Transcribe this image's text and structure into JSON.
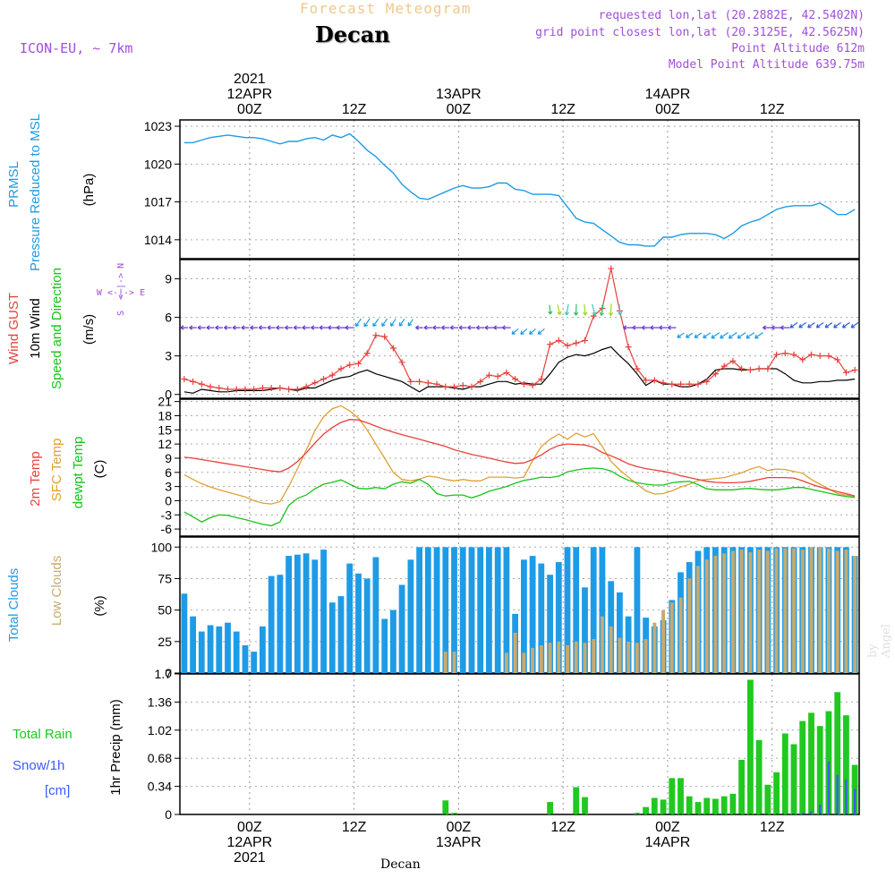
{
  "header": {
    "subtitle": "Forecast Meteogram",
    "location": "Decan",
    "model": "ICON-EU, ~ 7km",
    "requested": "requested lon,lat (20.2882E, 42.5402N)",
    "gridpoint": "grid point closest lon,lat (20.3125E, 42.5625N)",
    "point_alt": "Point Altitude 612m",
    "model_alt": "Model Point Altitude 639.75m",
    "footer": "Decan",
    "signature": "by Angel"
  },
  "colors": {
    "pressure": "#1e9be6",
    "gust": "#e8413c",
    "wind": "#000000",
    "temp2m": "#e8413c",
    "sfc": "#e0a030",
    "dew": "#19c419",
    "clouds": "#1e9be6",
    "lowclouds": "#c8aa6e",
    "rain": "#20c820",
    "snow": "#3c5aff",
    "title": "#f0c88c",
    "meta": "#a050d8"
  },
  "time_axis": {
    "top": [
      {
        "i": 8,
        "lines": [
          "2021",
          "12APR",
          "00Z"
        ]
      },
      {
        "i": 20,
        "lines": [
          "12Z"
        ]
      },
      {
        "i": 32,
        "lines": [
          "13APR",
          "00Z"
        ]
      },
      {
        "i": 44,
        "lines": [
          "12Z"
        ]
      },
      {
        "i": 56,
        "lines": [
          "14APR",
          "00Z"
        ]
      },
      {
        "i": 68,
        "lines": [
          "12Z"
        ]
      }
    ],
    "bottom": [
      {
        "i": 8,
        "lines": [
          "00Z",
          "12APR",
          "2021"
        ]
      },
      {
        "i": 20,
        "lines": [
          "12Z"
        ]
      },
      {
        "i": 32,
        "lines": [
          "00Z",
          "13APR"
        ]
      },
      {
        "i": 44,
        "lines": [
          "12Z"
        ]
      },
      {
        "i": 56,
        "lines": [
          "00Z",
          "14APR"
        ]
      },
      {
        "i": 68,
        "lines": [
          "12Z"
        ]
      }
    ]
  },
  "panels": [
    {
      "id": "pressure",
      "labels": [
        {
          "text": "PRMSL",
          "color": "#1e9be6"
        },
        {
          "text": "Pressure Reduced to MSL",
          "color": "#1e9be6"
        },
        {
          "text": "(hPa)",
          "color": "#000000"
        }
      ],
      "ylim": [
        1012.5,
        1023.5
      ],
      "ticks": [
        "1023",
        "1020",
        "1017",
        "1014"
      ]
    },
    {
      "id": "wind",
      "labels": [
        {
          "text": "Wind GUST",
          "color": "#e8413c"
        },
        {
          "text": "10m Wind",
          "color": "#000000"
        },
        {
          "text": "Speed and Direction",
          "color": "#19c419"
        },
        {
          "text": "(m/s)",
          "color": "#000000"
        }
      ],
      "ylim": [
        -0.3,
        10.5
      ],
      "ticks": [
        "9",
        "6",
        "3",
        "0"
      ],
      "compass": [
        "N",
        "W <-|-> E",
        "S"
      ]
    },
    {
      "id": "temp",
      "labels": [
        {
          "text": "2m Temp",
          "color": "#e8413c"
        },
        {
          "text": "SFC Temp",
          "color": "#e0a030"
        },
        {
          "text": "dewpt Temp",
          "color": "#19c419"
        },
        {
          "text": "(C)",
          "color": "#000000"
        }
      ],
      "ylim": [
        -7.5,
        21.5
      ],
      "ticks": [
        "21",
        "18",
        "15",
        "12",
        "9",
        "6",
        "3",
        "0",
        "-3",
        "-6"
      ]
    },
    {
      "id": "clouds",
      "labels": [
        {
          "text": "Total Clouds",
          "color": "#1e9be6"
        },
        {
          "text": "Low Clouds",
          "color": "#c8aa6e"
        },
        {
          "text": "(%)",
          "color": "#000000"
        }
      ],
      "ylim": [
        0,
        108
      ],
      "ticks": [
        "100",
        "75",
        "50",
        "25",
        "0"
      ]
    },
    {
      "id": "precip",
      "labels": [
        {
          "text": "Total  Rain",
          "color": "#20c820"
        },
        {
          "text": "Snow/1h",
          "color": "#3c5aff"
        },
        {
          "text": "[cm]",
          "color": "#3c5aff"
        },
        {
          "text": "1hr Precip (mm)",
          "color": "#000000"
        }
      ],
      "ylim": [
        0,
        1.7
      ],
      "ticks": [
        "1.7",
        "1.36",
        "1.02",
        "0.68",
        "0.34",
        "0"
      ]
    }
  ],
  "chart_data": {
    "type": "meteogram",
    "title": "Decan",
    "x": "hourly steps, index 0 = 11 Apr 16Z, index 8 = 12 Apr 00Z (step 1h), 78 steps",
    "series": [
      {
        "name": "pressure_msl_hPa",
        "values": [
          1021.7,
          1021.7,
          1021.9,
          1022.1,
          1022.2,
          1022.3,
          1022.2,
          1022.1,
          1022.1,
          1022.0,
          1021.8,
          1021.6,
          1021.8,
          1021.8,
          1022.0,
          1022.1,
          1021.9,
          1022.3,
          1022.1,
          1022.4,
          1021.8,
          1021.1,
          1020.6,
          1019.9,
          1019.3,
          1018.4,
          1017.8,
          1017.3,
          1017.2,
          1017.5,
          1017.8,
          1018.1,
          1018.3,
          1018.1,
          1018.1,
          1018.2,
          1018.5,
          1018.5,
          1018.0,
          1017.9,
          1017.6,
          1017.6,
          1017.6,
          1017.5,
          1016.6,
          1015.7,
          1015.4,
          1015.3,
          1014.8,
          1014.3,
          1013.8,
          1013.6,
          1013.6,
          1013.5,
          1013.5,
          1014.2,
          1014.2,
          1014.4,
          1014.5,
          1014.5,
          1014.5,
          1014.4,
          1014.1,
          1014.5,
          1015.1,
          1015.4,
          1015.6,
          1016.0,
          1016.4,
          1016.6,
          1016.7,
          1016.7,
          1016.7,
          1016.9,
          1016.5,
          1016.0,
          1016.0,
          1016.4
        ]
      },
      {
        "name": "wind_gust_ms",
        "values": [
          1.2,
          1.0,
          0.8,
          0.6,
          0.5,
          0.4,
          0.4,
          0.4,
          0.4,
          0.5,
          0.5,
          0.5,
          0.4,
          0.4,
          0.6,
          0.9,
          1.2,
          1.5,
          2.0,
          2.3,
          2.4,
          3.2,
          4.6,
          4.5,
          3.6,
          2.5,
          1.0,
          1.0,
          0.9,
          0.8,
          0.6,
          0.6,
          0.7,
          0.6,
          1.0,
          1.5,
          1.4,
          1.7,
          1.2,
          0.8,
          0.7,
          1.2,
          3.9,
          4.2,
          3.8,
          4.0,
          4.2,
          6.1,
          6.7,
          9.8,
          6.5,
          3.7,
          2.0,
          1.1,
          1.1,
          0.9,
          0.8,
          0.8,
          0.8,
          0.8,
          1.0,
          1.6,
          2.2,
          2.6,
          2.0,
          1.9,
          2.0,
          2.0,
          3.1,
          3.2,
          3.1,
          2.7,
          3.1,
          3.0,
          3.0,
          2.7,
          1.7,
          1.9
        ]
      },
      {
        "name": "wind_10m_ms",
        "values": [
          0.2,
          0.1,
          0.4,
          0.3,
          0.2,
          0.2,
          0.3,
          0.3,
          0.3,
          0.3,
          0.4,
          0.5,
          0.4,
          0.3,
          0.5,
          0.5,
          0.8,
          1.1,
          1.3,
          1.4,
          1.7,
          1.9,
          1.6,
          1.4,
          1.2,
          1.0,
          0.6,
          0.2,
          0.6,
          0.6,
          0.6,
          0.5,
          0.4,
          0.6,
          0.6,
          0.8,
          1.0,
          1.0,
          0.8,
          0.9,
          0.8,
          0.8,
          1.6,
          2.5,
          2.9,
          3.1,
          3.0,
          3.2,
          3.5,
          3.7,
          3.0,
          2.4,
          1.6,
          0.7,
          1.1,
          0.8,
          0.8,
          0.6,
          0.6,
          0.8,
          1.2,
          1.9,
          2.0,
          2.0,
          1.9,
          1.9,
          2.0,
          2.0,
          2.0,
          1.6,
          1.1,
          0.9,
          0.9,
          1.0,
          1.0,
          1.1,
          1.1,
          1.2
        ]
      },
      {
        "name": "temp_2m_C",
        "values": [
          9.2,
          9.0,
          8.7,
          8.4,
          8.1,
          7.8,
          7.5,
          7.2,
          6.9,
          6.6,
          6.3,
          6.1,
          6.9,
          8.3,
          10.1,
          12.2,
          14.1,
          15.5,
          16.6,
          17.2,
          17.1,
          16.5,
          15.8,
          15.1,
          14.5,
          14.0,
          13.5,
          13.0,
          12.5,
          12.0,
          11.5,
          10.8,
          10.3,
          9.8,
          9.4,
          9.0,
          8.6,
          8.2,
          7.9,
          8.0,
          8.7,
          9.7,
          10.9,
          11.7,
          12.0,
          11.9,
          11.8,
          11.3,
          10.2,
          9.5,
          8.7,
          7.8,
          7.2,
          6.8,
          6.5,
          6.2,
          5.8,
          5.3,
          4.9,
          4.5,
          4.1,
          3.9,
          3.8,
          3.8,
          3.9,
          4.1,
          4.5,
          4.9,
          4.9,
          4.9,
          4.8,
          4.2,
          3.5,
          2.9,
          2.4,
          1.9,
          1.5,
          1.0
        ]
      },
      {
        "name": "temp_sfc_C",
        "values": [
          5.5,
          4.5,
          3.6,
          2.9,
          2.3,
          1.8,
          1.3,
          0.8,
          0.0,
          -0.5,
          -0.7,
          -0.2,
          3.0,
          6.8,
          10.7,
          14.8,
          17.8,
          19.5,
          20.1,
          19.0,
          17.5,
          15.0,
          12.0,
          9.0,
          6.0,
          4.5,
          4.2,
          4.6,
          5.2,
          5.0,
          4.5,
          4.2,
          4.5,
          4.2,
          4.2,
          5.0,
          5.0,
          5.0,
          4.8,
          5.0,
          8.5,
          11.5,
          13.0,
          14.1,
          13.0,
          14.3,
          13.5,
          14.2,
          11.5,
          8.3,
          6.5,
          5.0,
          3.5,
          2.1,
          1.4,
          1.5,
          2.1,
          2.9,
          3.5,
          4.3,
          4.5,
          4.7,
          4.9,
          5.4,
          5.9,
          6.7,
          7.2,
          6.4,
          6.7,
          6.6,
          6.2,
          5.8,
          4.5,
          3.5,
          2.5,
          1.5,
          1.2,
          1.0
        ]
      },
      {
        "name": "dewpoint_C",
        "values": [
          -2.4,
          -3.4,
          -4.5,
          -3.6,
          -3.0,
          -3.1,
          -3.6,
          -4.0,
          -4.5,
          -5.0,
          -5.3,
          -4.5,
          -1.0,
          0.5,
          1.2,
          2.5,
          3.5,
          3.9,
          4.4,
          3.5,
          2.6,
          2.5,
          2.8,
          2.5,
          3.5,
          4.0,
          3.7,
          4.5,
          3.5,
          1.5,
          1.0,
          1.2,
          1.2,
          0.6,
          1.2,
          2.0,
          2.5,
          3.0,
          3.7,
          4.3,
          4.6,
          5.0,
          4.9,
          5.2,
          6.1,
          6.5,
          6.8,
          6.9,
          6.8,
          6.3,
          5.2,
          4.3,
          3.8,
          3.5,
          3.3,
          3.3,
          3.8,
          4.0,
          4.1,
          3.4,
          2.5,
          2.3,
          2.3,
          2.3,
          2.5,
          2.6,
          2.4,
          2.3,
          2.3,
          2.5,
          2.8,
          2.8,
          2.4,
          2.0,
          1.6,
          1.2,
          0.9,
          0.7
        ]
      },
      {
        "name": "total_clouds_pct",
        "values": [
          63,
          45,
          33,
          38,
          37,
          40,
          33,
          22,
          17,
          37,
          77,
          78,
          93,
          94,
          95,
          90,
          98,
          56,
          61,
          87,
          79,
          75,
          92,
          43,
          50,
          70,
          90,
          100,
          100,
          100,
          100,
          100,
          100,
          100,
          100,
          100,
          100,
          100,
          47,
          90,
          93,
          87,
          78,
          88,
          100,
          100,
          68,
          100,
          100,
          73,
          64,
          45,
          100,
          44,
          37,
          42,
          58,
          80,
          88,
          97,
          100,
          100,
          100,
          100,
          100,
          100,
          100,
          100,
          100,
          100,
          100,
          100,
          100,
          100,
          100,
          100,
          100,
          93
        ]
      },
      {
        "name": "low_clouds_pct",
        "values": [
          0,
          0,
          0,
          0,
          0,
          0,
          0,
          0,
          0,
          0,
          0,
          0,
          0,
          0,
          0,
          0,
          0,
          0,
          0,
          0,
          0,
          0,
          0,
          0,
          0,
          0,
          0,
          0,
          0,
          0,
          17,
          17,
          0,
          0,
          0,
          0,
          0,
          16,
          32,
          16,
          20,
          22,
          24,
          25,
          22,
          25,
          24,
          27,
          45,
          37,
          28,
          25,
          24,
          27,
          40,
          50,
          56,
          60,
          75,
          85,
          90,
          93,
          95,
          97,
          98,
          96,
          98,
          97,
          99,
          99,
          99,
          98,
          100,
          100,
          99,
          97,
          98,
          93
        ]
      },
      {
        "name": "rain_1h_mm",
        "values": [
          0,
          0,
          0,
          0,
          0,
          0,
          0,
          0,
          0,
          0,
          0,
          0,
          0,
          0,
          0,
          0,
          0,
          0,
          0,
          0,
          0,
          0,
          0,
          0,
          0,
          0,
          0,
          0,
          0,
          0,
          0.17,
          0.02,
          0,
          0,
          0,
          0,
          0,
          0,
          0,
          0,
          0,
          0,
          0.15,
          0,
          0,
          0.33,
          0.21,
          0,
          0,
          0,
          0,
          0,
          0.02,
          0.09,
          0.2,
          0.18,
          0.44,
          0.44,
          0.22,
          0.15,
          0.2,
          0.19,
          0.22,
          0.25,
          0.66,
          1.63,
          0.9,
          0.36,
          0.51,
          0.98,
          0.85,
          1.13,
          1.23,
          1.07,
          1.25,
          1.48,
          1.2,
          0.6
        ]
      },
      {
        "name": "snow_1h_cm",
        "values": [
          0,
          0,
          0,
          0,
          0,
          0,
          0,
          0,
          0,
          0,
          0,
          0,
          0,
          0,
          0,
          0,
          0,
          0,
          0,
          0,
          0,
          0,
          0,
          0,
          0,
          0,
          0,
          0,
          0,
          0,
          0,
          0,
          0,
          0,
          0,
          0,
          0,
          0,
          0,
          0,
          0,
          0,
          0,
          0,
          0,
          0,
          0,
          0,
          0,
          0,
          0,
          0,
          0,
          0,
          0,
          0,
          0,
          0,
          0,
          0,
          0,
          0,
          0,
          0,
          0,
          0,
          0,
          0,
          0,
          0,
          0,
          0.02,
          0.04,
          0.12,
          0.64,
          0.48,
          0.42,
          0.31
        ]
      }
    ]
  }
}
